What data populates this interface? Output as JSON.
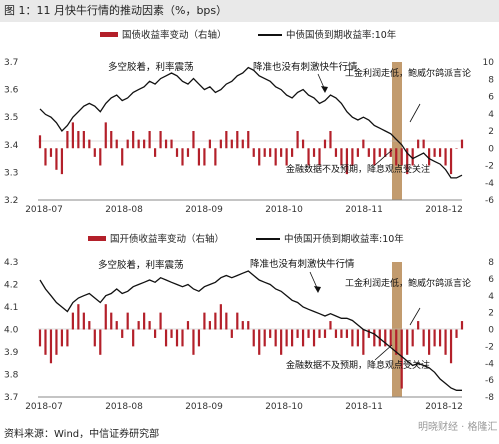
{
  "header": {
    "title": "图 1：11 月快牛行情的推动因素（%，bps）"
  },
  "footer": {
    "source": "资料来源：Wind，中信证券研究部"
  },
  "watermark": {
    "text": "明晓财经 · 格隆汇"
  },
  "colors": {
    "bar": "#b3202a",
    "line": "#111111",
    "highlight": "#b78a55",
    "axis": "#888888"
  },
  "chart_data": [
    {
      "type": "bar+line",
      "legend": {
        "bar": "国债收益率变动（右轴）",
        "line": "中债国债到期收益率:10年"
      },
      "x_ticks": [
        "2018-07",
        "2018-08",
        "2018-09",
        "2018-10",
        "2018-11",
        "2018-12"
      ],
      "y_left": {
        "ticks": [
          "3.7",
          "3.6",
          "3.5",
          "3.4",
          "3.3",
          "3.2"
        ],
        "ylim": [
          3.2,
          3.7
        ]
      },
      "y_right": {
        "ticks": [
          "10",
          "8",
          "6",
          "4",
          "2",
          "0",
          "-2",
          "-4",
          "-6"
        ],
        "ylim": [
          -6,
          10
        ]
      },
      "line_values": [
        3.53,
        3.51,
        3.5,
        3.48,
        3.45,
        3.47,
        3.5,
        3.52,
        3.54,
        3.55,
        3.54,
        3.52,
        3.55,
        3.57,
        3.58,
        3.56,
        3.57,
        3.59,
        3.6,
        3.61,
        3.63,
        3.62,
        3.64,
        3.65,
        3.66,
        3.65,
        3.63,
        3.62,
        3.64,
        3.62,
        3.6,
        3.61,
        3.59,
        3.6,
        3.62,
        3.63,
        3.65,
        3.66,
        3.68,
        3.67,
        3.65,
        3.64,
        3.63,
        3.61,
        3.6,
        3.58,
        3.57,
        3.59,
        3.6,
        3.58,
        3.57,
        3.55,
        3.56,
        3.58,
        3.57,
        3.55,
        3.52,
        3.5,
        3.49,
        3.5,
        3.49,
        3.47,
        3.46,
        3.45,
        3.44,
        3.42,
        3.4,
        3.37,
        3.35,
        3.36,
        3.37,
        3.35,
        3.34,
        3.33,
        3.31,
        3.28,
        3.28,
        3.29
      ],
      "bar_values": [
        1.5,
        -2,
        -1,
        -2.5,
        -3,
        2,
        3,
        2,
        2,
        1,
        -1,
        -2,
        3,
        2,
        1,
        -2,
        1,
        2,
        1,
        1,
        2,
        -1,
        2,
        1,
        1,
        -1,
        -2,
        -1,
        2,
        -2,
        -2,
        1,
        -2,
        1,
        2,
        1,
        2,
        1,
        2,
        -1,
        -2,
        -1,
        -1,
        -2,
        -1,
        -2,
        -1,
        2,
        1,
        -2,
        -1,
        -2,
        1,
        2,
        -1,
        -2,
        -3,
        -2,
        -1,
        1,
        -1,
        -2,
        -1,
        -1,
        -1,
        -2,
        -2,
        -3,
        -2,
        1,
        1,
        -2,
        -1,
        -1,
        -2,
        -3,
        0,
        1
      ],
      "highlight_range": [
        "2018-11-15",
        "2018-11-20"
      ],
      "annotations": [
        "多空胶着，利率震荡",
        "降准也没有刺激快牛行情",
        "工金利润走低，鲍威尔鸽派言论",
        "金融数据不及预期，降息观点受关注"
      ]
    },
    {
      "type": "bar+line",
      "legend": {
        "bar": "国开债收益率变动（右轴）",
        "line": "中债国开债到期收益率:10年"
      },
      "x_ticks": [
        "2018-07",
        "2018-08",
        "2018-09",
        "2018-10",
        "2018-11",
        "2018-12"
      ],
      "y_left": {
        "ticks": [
          "4.3",
          "4.2",
          "4.1",
          "4.0",
          "3.9",
          "3.8",
          "3.7"
        ],
        "ylim": [
          3.7,
          4.3
        ]
      },
      "y_right": {
        "ticks": [
          "8",
          "6",
          "4",
          "2",
          "0",
          "-2",
          "-4",
          "-6",
          "-8"
        ],
        "ylim": [
          -8,
          8
        ]
      },
      "line_values": [
        4.22,
        4.18,
        4.15,
        4.12,
        4.1,
        4.08,
        4.12,
        4.14,
        4.15,
        4.16,
        4.14,
        4.12,
        4.15,
        4.16,
        4.18,
        4.16,
        4.17,
        4.19,
        4.2,
        4.21,
        4.22,
        4.21,
        4.23,
        4.22,
        4.21,
        4.2,
        4.19,
        4.2,
        4.18,
        4.17,
        4.19,
        4.2,
        4.21,
        4.23,
        4.24,
        4.23,
        4.24,
        4.25,
        4.26,
        4.24,
        4.22,
        4.21,
        4.2,
        4.18,
        4.17,
        4.15,
        4.13,
        4.12,
        4.1,
        4.09,
        4.08,
        4.07,
        4.06,
        4.07,
        4.06,
        4.05,
        4.05,
        4.04,
        4.02,
        4.0,
        3.99,
        3.98,
        3.96,
        3.94,
        3.92,
        3.9,
        3.88,
        3.86,
        3.84,
        3.85,
        3.84,
        3.83,
        3.81,
        3.78,
        3.76,
        3.74,
        3.73,
        3.73
      ],
      "bar_values": [
        -2,
        -3,
        -4,
        -3,
        -2,
        -2,
        2,
        3,
        2,
        1,
        -2,
        -3,
        3,
        2,
        1,
        -1,
        2,
        -2,
        1,
        2,
        1,
        -1,
        2,
        -2,
        -1,
        -2,
        -2,
        1,
        -3,
        -2,
        2,
        1,
        2,
        3,
        2,
        -1,
        2,
        1,
        1,
        -2,
        -3,
        -2,
        -1,
        -2,
        -3,
        -2,
        -2,
        -1,
        -2,
        -1,
        -2,
        -1,
        -1,
        1,
        -1,
        -1,
        -1,
        -2,
        -2,
        -3,
        -1,
        -2,
        -2,
        -2,
        -2,
        -3,
        -7,
        -3,
        -2,
        1,
        -2,
        -3,
        -2,
        -2,
        -3,
        -4,
        -1,
        1
      ],
      "highlight_range": [
        "2018-11-15",
        "2018-11-20"
      ],
      "annotations": [
        "多空胶着，利率震荡",
        "降准也没有刺激快牛行情",
        "工金利润走低，鲍威尔鸽派言论",
        "金融数据不及预期，降息观点受关注"
      ]
    }
  ]
}
